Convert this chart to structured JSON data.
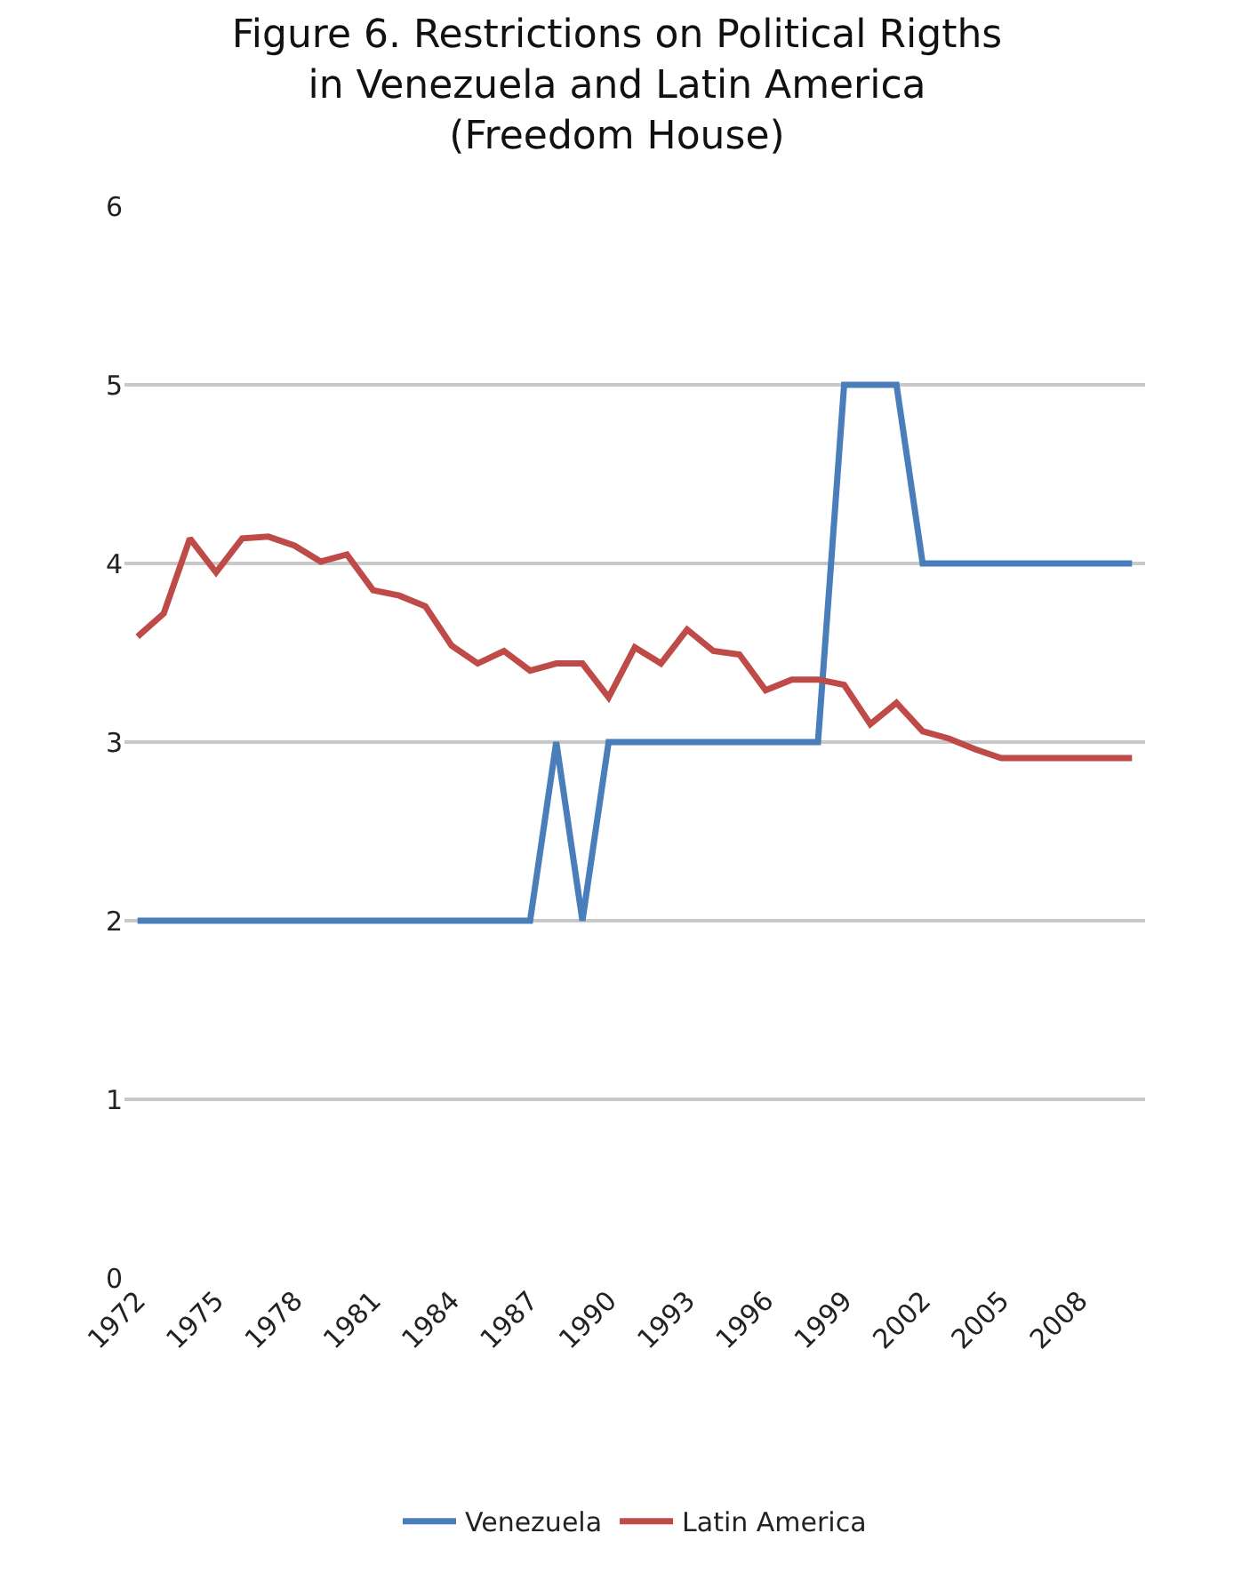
{
  "chart_data": {
    "type": "line",
    "title": "Figure 6. Restrictions on Political Rigths\nin Venezuela and Latin America\n(Freedom House)",
    "x": [
      1972,
      1973,
      1974,
      1975,
      1976,
      1977,
      1978,
      1979,
      1980,
      1981,
      1982,
      1983,
      1984,
      1985,
      1986,
      1987,
      1988,
      1989,
      1990,
      1991,
      1992,
      1993,
      1994,
      1995,
      1996,
      1997,
      1998,
      1999,
      2000,
      2001,
      2002,
      2003,
      2004,
      2005,
      2006,
      2007,
      2008,
      2009,
      2010
    ],
    "series": [
      {
        "name": "Venezuela",
        "color": "#4a7ebb",
        "values": [
          2,
          2,
          2,
          2,
          2,
          2,
          2,
          2,
          2,
          2,
          2,
          2,
          2,
          2,
          2,
          2,
          3,
          2,
          3,
          3,
          3,
          3,
          3,
          3,
          3,
          3,
          3,
          5,
          5,
          5,
          4,
          4,
          4,
          4,
          4,
          4,
          4,
          4,
          4
        ]
      },
      {
        "name": "Latin America",
        "color": "#be4b48",
        "values": [
          3.59,
          3.72,
          4.14,
          3.95,
          4.14,
          4.15,
          4.1,
          4.01,
          4.05,
          3.85,
          3.82,
          3.76,
          3.54,
          3.44,
          3.51,
          3.4,
          3.44,
          3.44,
          3.25,
          3.53,
          3.44,
          3.63,
          3.51,
          3.49,
          3.29,
          3.35,
          3.35,
          3.32,
          3.1,
          3.22,
          3.06,
          3.02,
          2.96,
          2.91,
          2.91,
          2.91,
          2.91,
          2.91,
          2.91
        ]
      }
    ],
    "xlim": [
      1971.5,
      2010.5
    ],
    "xticks": [
      1972,
      1975,
      1978,
      1981,
      1984,
      1987,
      1990,
      1993,
      1996,
      1999,
      2002,
      2005,
      2008
    ],
    "ylim": [
      0,
      6
    ],
    "yticks": [
      0,
      1,
      2,
      3,
      4,
      5,
      6
    ],
    "grid": "y",
    "legend": "bottom",
    "marker": "none",
    "line_style": "solid"
  }
}
